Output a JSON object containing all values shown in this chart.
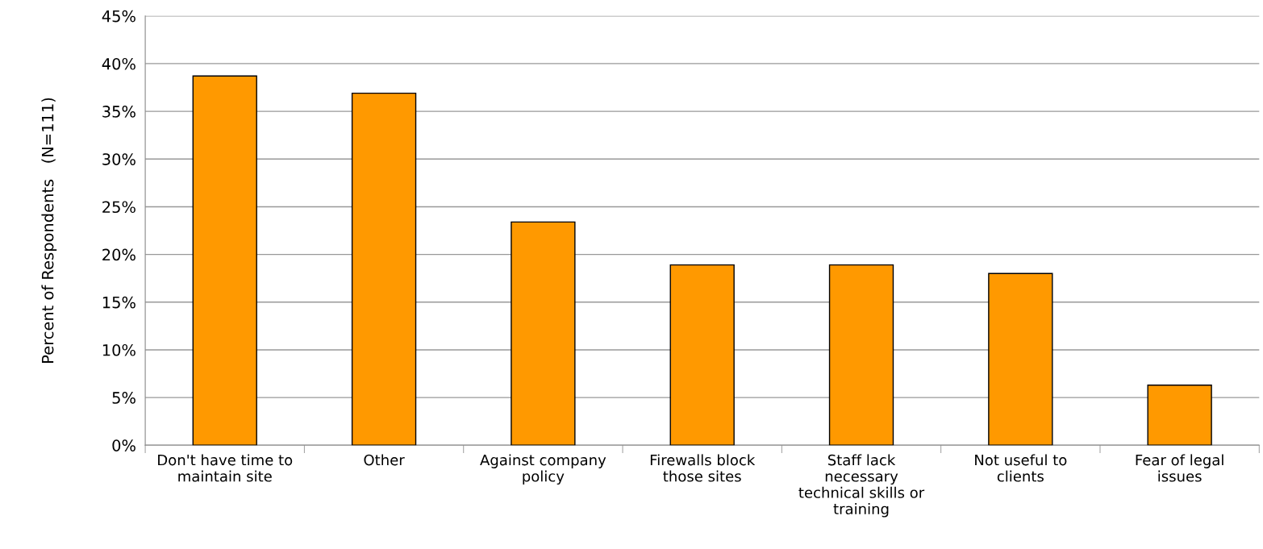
{
  "chart_data": {
    "type": "bar",
    "ylabel": "Percent of Respondents   (N=111)",
    "categories": [
      "Don't have time to\nmaintain site",
      "Other",
      "Against company\npolicy",
      "Firewalls block\nthose sites",
      "Staff lack\nnecessary\ntechnical skills or\ntraining",
      "Not useful to\nclients",
      "Fear of legal\nissues"
    ],
    "values": [
      38.7,
      36.9,
      23.4,
      18.9,
      18.9,
      18.0,
      6.3
    ],
    "color": "#ff9900",
    "ylim": [
      0,
      45
    ],
    "yticks": [
      {
        "value": 0,
        "label": "0%"
      },
      {
        "value": 5,
        "label": "5%"
      },
      {
        "value": 10,
        "label": "10%"
      },
      {
        "value": 15,
        "label": "15%"
      },
      {
        "value": 20,
        "label": "20%"
      },
      {
        "value": 25,
        "label": "25%"
      },
      {
        "value": 30,
        "label": "30%"
      },
      {
        "value": 35,
        "label": "35%"
      },
      {
        "value": 40,
        "label": "40%"
      },
      {
        "value": 45,
        "label": "45%"
      }
    ],
    "grid": "y"
  }
}
